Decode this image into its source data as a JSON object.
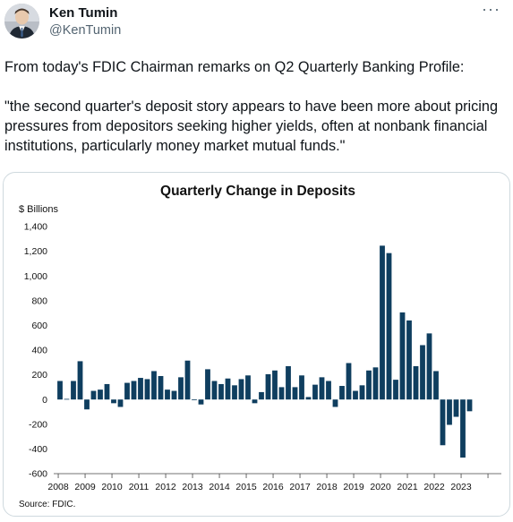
{
  "tweet": {
    "author_name": "Ken Tumin",
    "author_handle": "@KenTumin",
    "more_label": "···",
    "text_line1": "From today's FDIC Chairman remarks on Q2 Quarterly Banking Profile:",
    "text_line2": "\"the second quarter's deposit story appears to have been more about pricing pressures from depositors seeking higher yields, often at nonbank financial institutions, particularly money market mutual funds.\""
  },
  "colors": {
    "bar": "#0f3e5f",
    "handle": "#536471",
    "card_border": "#cfd9de"
  },
  "chart_data": {
    "type": "bar",
    "title": "Quarterly Change in Deposits",
    "ylabel": "$ Billions",
    "source": "Source: FDIC.",
    "ylim": [
      -600,
      1400
    ],
    "yticks": [
      1400,
      1200,
      1000,
      800,
      600,
      400,
      200,
      0,
      -200,
      -400,
      -600
    ],
    "ytick_labels": [
      "1,400",
      "1,200",
      "1,000",
      "800",
      "600",
      "400",
      "200",
      "0",
      "-200",
      "-400",
      "-600"
    ],
    "year_labels": [
      "2008",
      "2009",
      "2010",
      "2011",
      "2012",
      "2013",
      "2014",
      "2015",
      "2016",
      "2017",
      "2018",
      "2019",
      "2020",
      "2021",
      "2022",
      "2023"
    ],
    "grid": false,
    "legend": "none",
    "values": [
      150,
      5,
      150,
      310,
      -80,
      70,
      80,
      125,
      -30,
      -60,
      135,
      150,
      175,
      165,
      230,
      190,
      80,
      70,
      180,
      315,
      -5,
      -40,
      245,
      150,
      125,
      170,
      115,
      165,
      195,
      -30,
      60,
      205,
      235,
      100,
      270,
      100,
      195,
      20,
      120,
      180,
      150,
      -60,
      110,
      295,
      70,
      115,
      235,
      260,
      1245,
      1185,
      160,
      705,
      640,
      270,
      440,
      535,
      230,
      -370,
      -205,
      -140,
      -470,
      -95
    ]
  }
}
